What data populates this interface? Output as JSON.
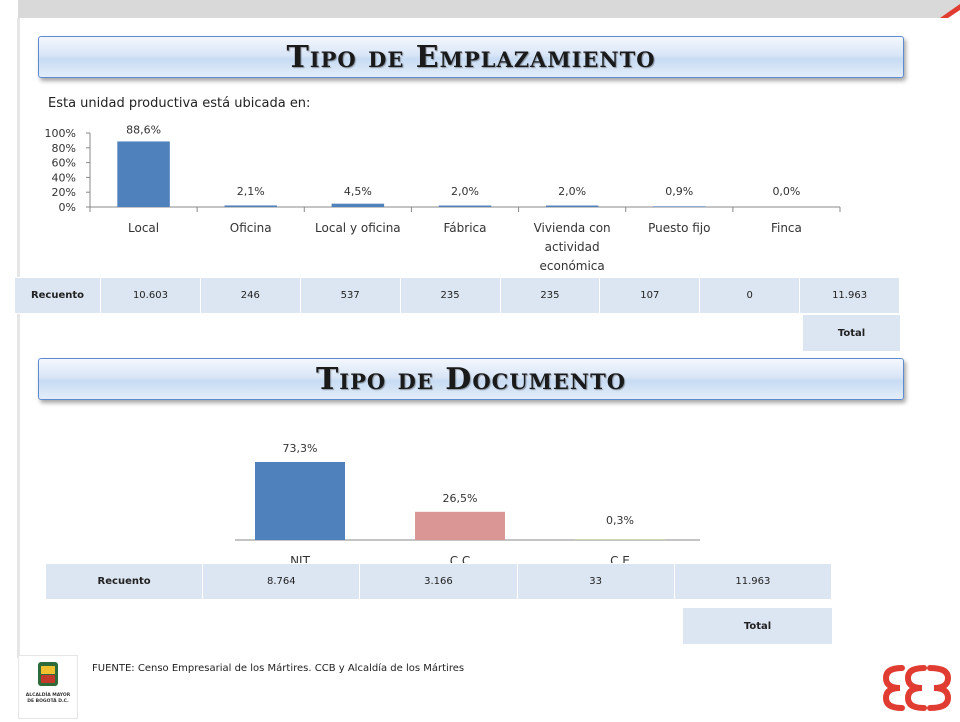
{
  "section1": {
    "title": "Tipo de Emplazamiento",
    "subtitle": "Esta unidad productiva está ubicada en:"
  },
  "section2": {
    "title": "Tipo de Documento"
  },
  "table1": {
    "header": "Recuento",
    "values": [
      "10.603",
      "246",
      "537",
      "235",
      "235",
      "107",
      "0",
      "11.963"
    ],
    "total_label": "Total"
  },
  "table2": {
    "header": "Recuento",
    "values": [
      "8.764",
      "3.166",
      "33",
      "11.963"
    ],
    "total_label": "Total"
  },
  "footer": {
    "source": "FUENTE: Censo Empresarial de los Mártires. CCB y Alcaldía de los Mártires",
    "logo_caption": "ALCALDÍA MAYOR DE BOGOTÁ D.C."
  },
  "colors": {
    "bar_blue": "#4f81bd",
    "bar_red": "#d99694",
    "accent_red": "#e03c31",
    "table_fill": "#dce6f2"
  },
  "chart_data": [
    {
      "type": "bar",
      "categories": [
        "Local",
        "Oficina",
        "Local y oficina",
        "Fábrica",
        "Vivienda con actividad económica",
        "Puesto fijo",
        "Finca"
      ],
      "category_lines": [
        [
          "Local"
        ],
        [
          "Oficina"
        ],
        [
          "Local y oficina"
        ],
        [
          "Fábrica"
        ],
        [
          "Vivienda con",
          "actividad",
          "económica"
        ],
        [
          "Puesto fijo"
        ],
        [
          "Finca"
        ]
      ],
      "values": [
        88.6,
        2.1,
        4.5,
        2.0,
        2.0,
        0.9,
        0.0
      ],
      "data_labels": [
        "88,6%",
        "2,1%",
        "4,5%",
        "2,0%",
        "2,0%",
        "0,9%",
        "0,0%"
      ],
      "yticks": [
        "0%",
        "20%",
        "40%",
        "60%",
        "80%",
        "100%"
      ],
      "ylim": [
        0,
        100
      ],
      "color": "#4f81bd"
    },
    {
      "type": "bar",
      "categories": [
        "NIT",
        "C.C",
        "C.E"
      ],
      "values": [
        73.3,
        26.5,
        0.3
      ],
      "data_labels": [
        "73,3%",
        "26,5%",
        "0,3%"
      ],
      "colors": [
        "#4f81bd",
        "#d99694",
        "#9bbb59"
      ],
      "ylim": [
        0,
        100
      ]
    }
  ]
}
